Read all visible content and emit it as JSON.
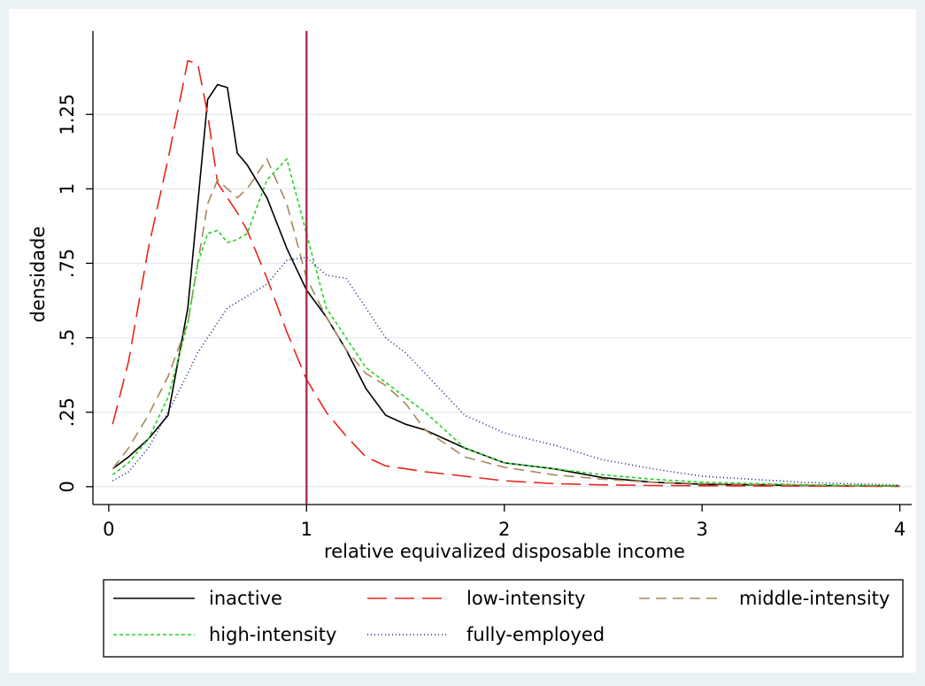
{
  "chart_data": {
    "type": "line",
    "x_label": "relative equivalized disposable income",
    "y_label": "densidade",
    "xlim": [
      -0.08,
      4.06
    ],
    "ylim": [
      -0.06,
      1.53
    ],
    "xticks": [
      0,
      1,
      2,
      3,
      4
    ],
    "yticks": [
      0,
      {
        "value": 0.25,
        "label": ".25"
      },
      {
        "value": 0.5,
        "label": ".5"
      },
      {
        "value": 0.75,
        "label": ".75"
      },
      1,
      {
        "value": 1.25,
        "label": "1.25"
      }
    ],
    "grid": true,
    "xline": {
      "x": 1,
      "color": "#a3213f"
    },
    "x": [
      0.02,
      0.1,
      0.2,
      0.3,
      0.4,
      0.45,
      0.5,
      0.55,
      0.6,
      0.65,
      0.7,
      0.8,
      0.9,
      1,
      1.1,
      1.2,
      1.3,
      1.4,
      1.5,
      1.6,
      1.8,
      2,
      2.25,
      2.5,
      2.75,
      3,
      3.5,
      4
    ],
    "series": [
      {
        "name": "inactive",
        "color": "#000000",
        "dash": "none",
        "values": [
          0.06,
          0.1,
          0.16,
          0.24,
          0.6,
          0.95,
          1.3,
          1.35,
          1.34,
          1.12,
          1.08,
          0.97,
          0.8,
          0.66,
          0.57,
          0.46,
          0.33,
          0.24,
          0.21,
          0.19,
          0.13,
          0.08,
          0.06,
          0.03,
          0.015,
          0.008,
          0.004,
          0.002
        ]
      },
      {
        "name": "low-intensity",
        "color": "#e8241b",
        "dash": "22,9",
        "values": [
          0.21,
          0.42,
          0.8,
          1.1,
          1.43,
          1.42,
          1.25,
          1.02,
          0.97,
          0.92,
          0.86,
          0.7,
          0.52,
          0.36,
          0.25,
          0.17,
          0.1,
          0.07,
          0.06,
          0.05,
          0.035,
          0.02,
          0.01,
          0.006,
          0.004,
          0.003,
          0.002,
          0.001
        ]
      },
      {
        "name": "middle-intensity",
        "color": "#a8875a",
        "dash": "12,7",
        "values": [
          0.06,
          0.13,
          0.24,
          0.37,
          0.55,
          0.75,
          0.95,
          1.03,
          1.0,
          0.97,
          1.0,
          1.1,
          0.95,
          0.7,
          0.57,
          0.46,
          0.38,
          0.34,
          0.28,
          0.19,
          0.1,
          0.065,
          0.04,
          0.025,
          0.015,
          0.01,
          0.005,
          0.002
        ]
      },
      {
        "name": "high-intensity",
        "color": "#22d422",
        "dash": "4,3",
        "values": [
          0.04,
          0.08,
          0.16,
          0.3,
          0.55,
          0.75,
          0.85,
          0.86,
          0.82,
          0.83,
          0.85,
          1.03,
          1.1,
          0.85,
          0.6,
          0.5,
          0.4,
          0.35,
          0.3,
          0.25,
          0.13,
          0.08,
          0.06,
          0.04,
          0.025,
          0.015,
          0.007,
          0.003
        ]
      },
      {
        "name": "fully-employed",
        "color": "#1a237e",
        "dash": "1,3",
        "values": [
          0.02,
          0.05,
          0.13,
          0.25,
          0.38,
          0.45,
          0.5,
          0.55,
          0.6,
          0.62,
          0.64,
          0.68,
          0.76,
          0.77,
          0.71,
          0.7,
          0.6,
          0.5,
          0.45,
          0.38,
          0.24,
          0.18,
          0.14,
          0.09,
          0.06,
          0.035,
          0.015,
          0.005
        ]
      }
    ]
  }
}
